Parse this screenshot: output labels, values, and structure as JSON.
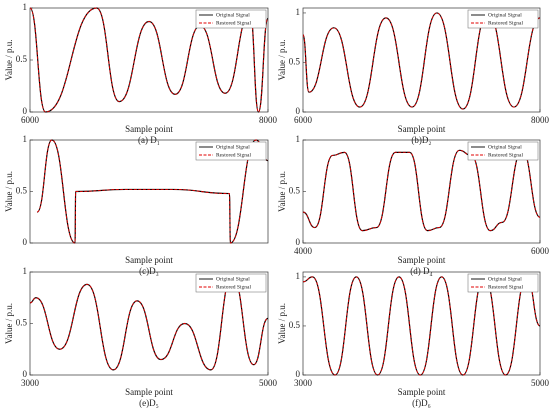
{
  "chart_data": [
    {
      "type": "line",
      "caption": "(a) D₁",
      "xlabel": "Sample point",
      "ylabel": "Value / p.u.",
      "xlim": [
        6000,
        8000
      ],
      "xticks": [
        6000,
        8000
      ],
      "ylim": [
        0,
        1
      ],
      "yticks": [
        0,
        0.5,
        1
      ],
      "x": [
        6000,
        6130,
        6560,
        6750,
        7000,
        7220,
        7430,
        7640,
        7850,
        7920,
        8000
      ],
      "series": [
        {
          "name": "Original Signal",
          "color": "#000000",
          "values": [
            1.0,
            0.0,
            1.0,
            0.1,
            0.87,
            0.17,
            0.83,
            0.18,
            0.95,
            0.0,
            0.9
          ]
        },
        {
          "name": "Restored Signal",
          "color": "#e00000",
          "values": [
            1.0,
            0.0,
            1.0,
            0.1,
            0.87,
            0.17,
            0.83,
            0.18,
            0.95,
            0.0,
            0.9
          ]
        }
      ],
      "legend": "upper right"
    },
    {
      "type": "line",
      "caption": "(b)D₂",
      "xlabel": "Sample point",
      "ylabel": "Value / p.u.",
      "xlim": [
        6000,
        8000
      ],
      "xticks": [
        6000,
        8000
      ],
      "ylim": [
        0,
        1.05
      ],
      "yticks": [
        0,
        0.5,
        1
      ],
      "x": [
        6000,
        6050,
        6260,
        6480,
        6700,
        6920,
        7130,
        7350,
        7560,
        7780,
        8000
      ],
      "series": [
        {
          "name": "Original Signal",
          "color": "#000000",
          "values": [
            0.78,
            0.2,
            0.85,
            0.05,
            0.95,
            0.05,
            1.0,
            0.03,
            1.0,
            0.05,
            0.95
          ]
        },
        {
          "name": "Restored Signal",
          "color": "#e00000",
          "values": [
            0.78,
            0.2,
            0.85,
            0.05,
            0.95,
            0.05,
            1.0,
            0.03,
            1.0,
            0.05,
            0.95
          ]
        }
      ],
      "legend": "upper right"
    },
    {
      "type": "line",
      "caption": "(c)D₃",
      "xlabel": "Sample point",
      "ylabel": "Value / p.u.",
      "xlim": [
        0,
        1000
      ],
      "ylim": [
        0,
        1
      ],
      "yticks": [
        0,
        0.5,
        1
      ],
      "x": [
        30,
        92,
        189,
        192,
        400,
        600,
        838,
        842,
        950,
        1000
      ],
      "series": [
        {
          "name": "Original Signal",
          "color": "#000000",
          "values": [
            0.3,
            1.0,
            0.0,
            0.5,
            0.52,
            0.52,
            0.48,
            0.0,
            1.0,
            0.8
          ]
        },
        {
          "name": "Restored Signal",
          "color": "#e00000",
          "values": [
            0.3,
            1.0,
            0.0,
            0.5,
            0.52,
            0.52,
            0.48,
            0.0,
            1.0,
            0.8
          ]
        }
      ],
      "legend": "upper right"
    },
    {
      "type": "line",
      "caption": "(d) D₄",
      "xlabel": "Sample point",
      "ylabel": "Value / p.u.",
      "xlim": [
        4000,
        6000
      ],
      "xticks": [
        4000,
        6000
      ],
      "ylim": [
        0,
        1
      ],
      "yticks": [
        0,
        0.5,
        1
      ],
      "x": [
        4000,
        4100,
        4250,
        4350,
        4500,
        4620,
        4780,
        4900,
        5050,
        5150,
        5320,
        5420,
        5580,
        5680,
        5850,
        6000
      ],
      "series": [
        {
          "name": "Original Signal",
          "color": "#000000",
          "values": [
            0.3,
            0.15,
            0.85,
            0.88,
            0.12,
            0.15,
            0.88,
            0.88,
            0.12,
            0.15,
            0.9,
            0.85,
            0.12,
            0.2,
            0.9,
            0.25
          ]
        },
        {
          "name": "Restored Signal",
          "color": "#e00000",
          "values": [
            0.3,
            0.15,
            0.85,
            0.88,
            0.12,
            0.15,
            0.88,
            0.88,
            0.12,
            0.15,
            0.9,
            0.85,
            0.12,
            0.2,
            0.9,
            0.25
          ]
        }
      ],
      "legend": "upper right"
    },
    {
      "type": "line",
      "caption": "(e)D₅",
      "xlabel": "Sample point",
      "ylabel": "Value / p.u.",
      "xlim": [
        3000,
        5000
      ],
      "xticks": [
        3000,
        5000
      ],
      "ylim": [
        0,
        1
      ],
      "yticks": [
        0,
        0.5,
        1
      ],
      "x": [
        3000,
        3050,
        3250,
        3480,
        3700,
        3900,
        4100,
        4300,
        4520,
        4700,
        4880,
        5000
      ],
      "series": [
        {
          "name": "Original Signal",
          "color": "#000000",
          "values": [
            0.7,
            0.75,
            0.25,
            0.88,
            0.05,
            0.72,
            0.15,
            0.5,
            0.05,
            0.97,
            0.1,
            0.55
          ]
        },
        {
          "name": "Restored Signal",
          "color": "#e00000",
          "values": [
            0.7,
            0.75,
            0.25,
            0.88,
            0.05,
            0.72,
            0.15,
            0.5,
            0.05,
            0.97,
            0.1,
            0.55
          ]
        }
      ],
      "legend": "upper right"
    },
    {
      "type": "line",
      "caption": "(f)D₆",
      "xlabel": "Sample point",
      "ylabel": "Value / p.u.",
      "xlim": [
        3000,
        5000
      ],
      "xticks": [
        3000,
        5000
      ],
      "ylim": [
        0,
        1.05
      ],
      "yticks": [
        0,
        0.5,
        1
      ],
      "x": [
        3000,
        3080,
        3270,
        3450,
        3630,
        3810,
        3990,
        4170,
        4350,
        4530,
        4710,
        4890,
        5000
      ],
      "series": [
        {
          "name": "Original Signal",
          "color": "#000000",
          "values": [
            0.95,
            1.0,
            0.0,
            1.0,
            0.0,
            1.0,
            0.0,
            1.0,
            0.0,
            1.0,
            0.0,
            1.0,
            0.5
          ]
        },
        {
          "name": "Restored Signal",
          "color": "#e00000",
          "values": [
            0.95,
            1.0,
            0.0,
            1.0,
            0.0,
            1.0,
            0.0,
            1.0,
            0.0,
            1.0,
            0.0,
            1.0,
            0.5
          ]
        }
      ],
      "legend": "upper right"
    }
  ]
}
